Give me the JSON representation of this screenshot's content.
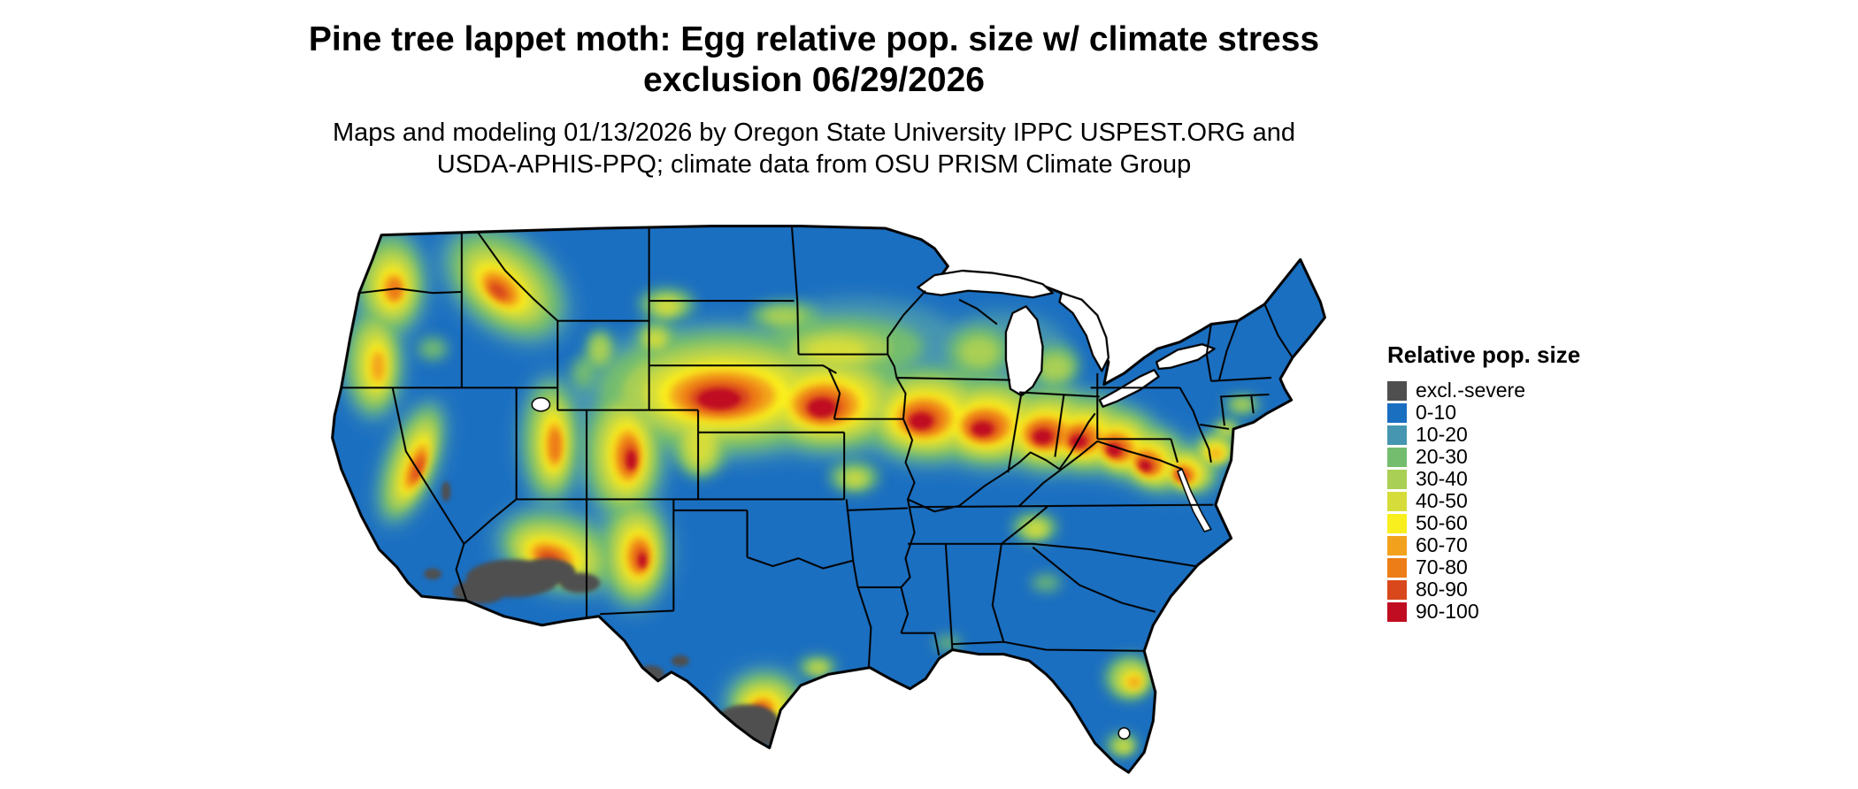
{
  "page": {
    "background": "#ffffff"
  },
  "header": {
    "title_line1": "Pine tree lappet moth: Egg relative pop. size w/ climate stress",
    "title_line2": "exclusion 06/29/2026",
    "subtitle_line1": "Maps and modeling 01/13/2026 by Oregon State University IPPC USPEST.ORG and",
    "subtitle_line2": "USDA-APHIS-PPQ; climate data from OSU PRISM Climate Group"
  },
  "map": {
    "region": "Contiguous United States",
    "border_color": "#000000",
    "water_color": "#ffffff",
    "base_category": "0-10"
  },
  "legend": {
    "title": "Relative pop. size",
    "items": [
      {
        "label": "excl.-severe",
        "color": "#4f4f4f"
      },
      {
        "label": "0-10",
        "color": "#1b6fc1"
      },
      {
        "label": "10-20",
        "color": "#4696b1"
      },
      {
        "label": "20-30",
        "color": "#74bd6e"
      },
      {
        "label": "30-40",
        "color": "#a9cf54"
      },
      {
        "label": "40-50",
        "color": "#d6dd3a"
      },
      {
        "label": "50-60",
        "color": "#f9ee1e"
      },
      {
        "label": "60-70",
        "color": "#f2a11c"
      },
      {
        "label": "70-80",
        "color": "#ed7d17"
      },
      {
        "label": "80-90",
        "color": "#d9481c"
      },
      {
        "label": "90-100",
        "color": "#c00d22"
      }
    ]
  }
}
